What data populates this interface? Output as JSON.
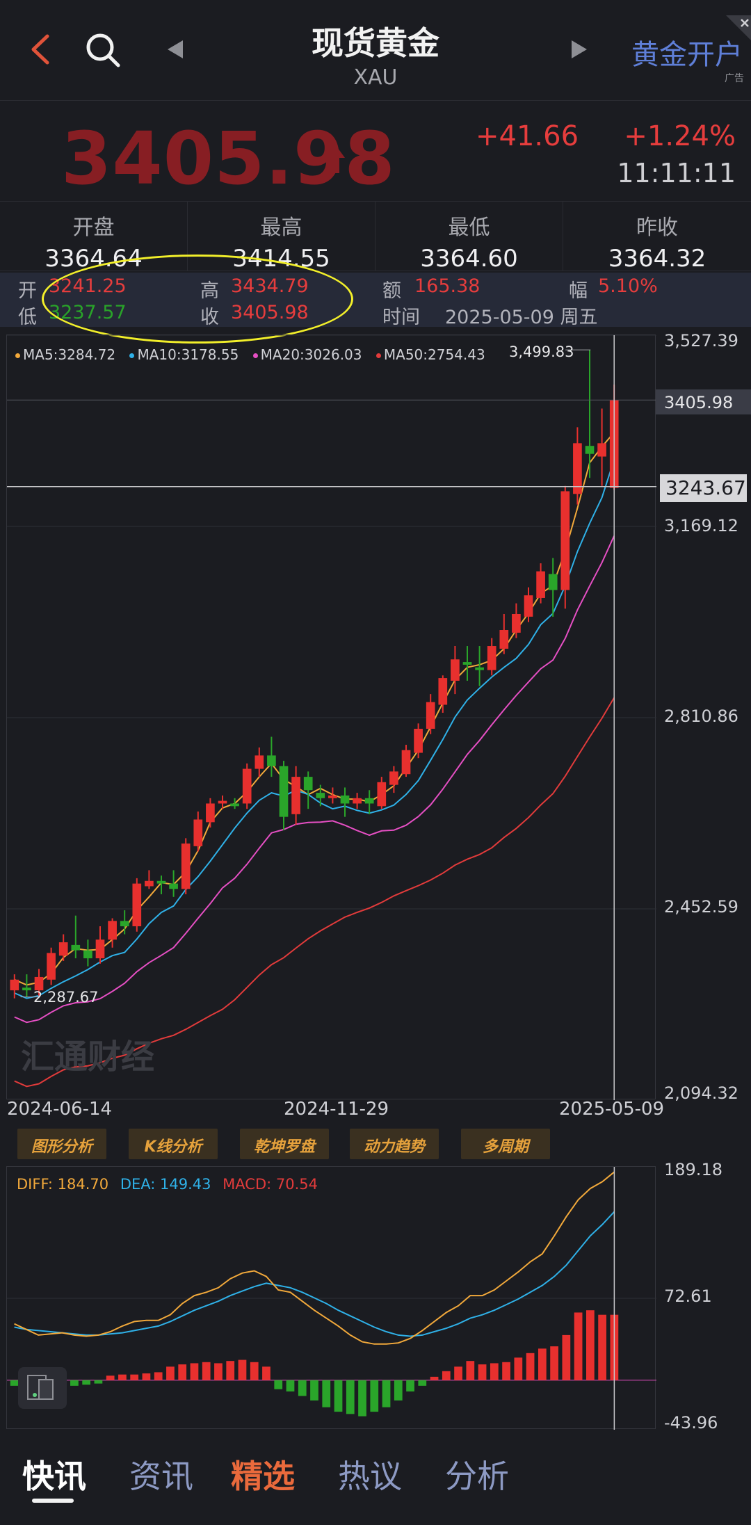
{
  "header": {
    "title": "现货黄金",
    "subtitle": "XAU",
    "ad_link": "黄金开户",
    "ad_tag": "广告"
  },
  "quote": {
    "price": "3405.98",
    "change": "+41.66",
    "change_pct": "+1.24%",
    "time": "11:11:11"
  },
  "stats": [
    {
      "label": "开盘",
      "value": "3364.64"
    },
    {
      "label": "最高",
      "value": "3414.55"
    },
    {
      "label": "最低",
      "value": "3364.60"
    },
    {
      "label": "昨收",
      "value": "3364.32"
    }
  ],
  "ohlc": {
    "open_label": "开",
    "open": "3241.25",
    "high_label": "高",
    "high": "3434.79",
    "amount_label": "额",
    "amount": "165.38",
    "range_label": "幅",
    "range": "5.10%",
    "low_label": "低",
    "low": "3237.57",
    "close_label": "收",
    "close": "3405.98",
    "time_label": "时间",
    "time": "2025-05-09 周五"
  },
  "chart": {
    "ma_legend": [
      {
        "text": "MA5:3284.72",
        "color": "#f2a93b"
      },
      {
        "text": "MA10:3178.55",
        "color": "#2fb1e8"
      },
      {
        "text": "MA20:3026.03",
        "color": "#e64fc4"
      },
      {
        "text": "MA50:2754.43",
        "color": "#e23b3b"
      }
    ],
    "y_labels": [
      "3,527.39",
      "3,169.12",
      "2,810.86",
      "2,452.59",
      "2,094.32"
    ],
    "last_price_tag": "3405.98",
    "crosshair_tag": "3243.67",
    "max_label": "3,499.83",
    "min_label": "2,287.67",
    "x_labels": [
      "2024-06-14",
      "2024-11-29",
      "2025-05-09"
    ],
    "watermark": "汇通财经"
  },
  "chart_data": {
    "type": "candlestick",
    "x_range": [
      "2024-06-14",
      "2025-05-09"
    ],
    "ylim": [
      2094.32,
      3527.39
    ],
    "interval": "weekly",
    "candles": [
      [
        2300,
        2320,
        2285,
        2330
      ],
      [
        2305,
        2300,
        2287.67,
        2330
      ],
      [
        2300,
        2325,
        2290,
        2340
      ],
      [
        2320,
        2370,
        2310,
        2380
      ],
      [
        2365,
        2390,
        2355,
        2405
      ],
      [
        2385,
        2375,
        2360,
        2440
      ],
      [
        2375,
        2360,
        2345,
        2395
      ],
      [
        2360,
        2395,
        2350,
        2420
      ],
      [
        2395,
        2430,
        2380,
        2435
      ],
      [
        2430,
        2420,
        2405,
        2450
      ],
      [
        2420,
        2500,
        2410,
        2510
      ],
      [
        2495,
        2505,
        2490,
        2525
      ],
      [
        2505,
        2500,
        2480,
        2515
      ],
      [
        2500,
        2490,
        2475,
        2525
      ],
      [
        2490,
        2575,
        2480,
        2585
      ],
      [
        2570,
        2620,
        2560,
        2635
      ],
      [
        2615,
        2650,
        2605,
        2660
      ],
      [
        2650,
        2655,
        2640,
        2665
      ],
      [
        2650,
        2645,
        2640,
        2660
      ],
      [
        2650,
        2715,
        2640,
        2725
      ],
      [
        2715,
        2740,
        2700,
        2755
      ],
      [
        2740,
        2720,
        2700,
        2775
      ],
      [
        2720,
        2625,
        2600,
        2730
      ],
      [
        2630,
        2700,
        2610,
        2720
      ],
      [
        2700,
        2675,
        2640,
        2710
      ],
      [
        2670,
        2660,
        2645,
        2685
      ],
      [
        2660,
        2665,
        2650,
        2680
      ],
      [
        2665,
        2650,
        2625,
        2680
      ],
      [
        2650,
        2660,
        2640,
        2670
      ],
      [
        2660,
        2650,
        2630,
        2675
      ],
      [
        2645,
        2690,
        2640,
        2700
      ],
      [
        2685,
        2710,
        2670,
        2720
      ],
      [
        2705,
        2750,
        2700,
        2760
      ],
      [
        2745,
        2790,
        2735,
        2800
      ],
      [
        2790,
        2840,
        2780,
        2855
      ],
      [
        2835,
        2885,
        2820,
        2890
      ],
      [
        2880,
        2920,
        2855,
        2945
      ],
      [
        2915,
        2910,
        2880,
        2945
      ],
      [
        2905,
        2900,
        2870,
        2945
      ],
      [
        2900,
        2945,
        2890,
        2960
      ],
      [
        2940,
        2975,
        2930,
        3005
      ],
      [
        2970,
        3005,
        2960,
        3025
      ],
      [
        3000,
        3040,
        2990,
        3055
      ],
      [
        3035,
        3085,
        3025,
        3100
      ],
      [
        3080,
        3050,
        3000,
        3110
      ],
      [
        3050,
        3235,
        3015,
        3245
      ],
      [
        3230,
        3325,
        3210,
        3355
      ],
      [
        3320,
        3305,
        3260,
        3500
      ],
      [
        3300,
        3325,
        3245,
        3390
      ],
      [
        3241.25,
        3405.98,
        3237.57,
        3434.79
      ]
    ],
    "ma": {
      "MA5": 3284.72,
      "MA10": 3178.55,
      "MA20": 3026.03,
      "MA50": 2754.43
    }
  },
  "macd": {
    "diff": "DIFF: 184.70",
    "dea": "DEA: 149.43",
    "macd": "MACD: 70.54",
    "y_labels": [
      "189.18",
      "72.61",
      "-43.96"
    ],
    "ylim": [
      -43.96,
      189.18
    ]
  },
  "buttons": [
    "图形分析",
    "K线分析",
    "乾坤罗盘",
    "动力趋势",
    "多周期"
  ],
  "nav": {
    "tabs": [
      "快讯",
      "资讯",
      "精选",
      "热议",
      "分析"
    ]
  }
}
